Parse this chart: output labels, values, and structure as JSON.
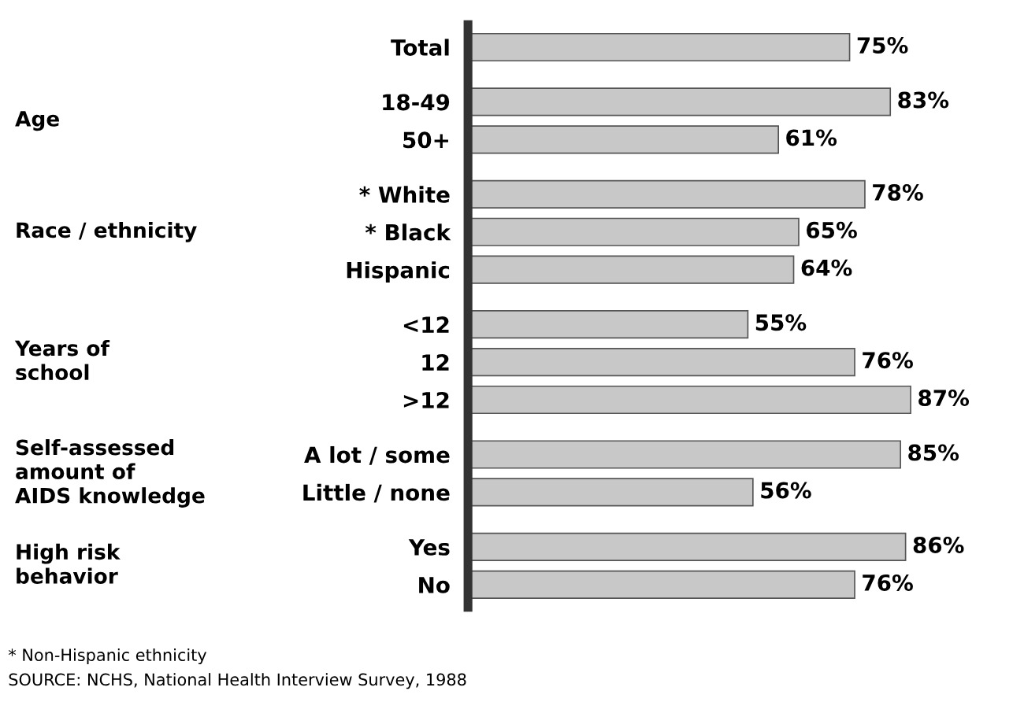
{
  "chart_data": {
    "type": "bar",
    "orientation": "horizontal",
    "categories": [
      "Total",
      "18-49",
      "50+",
      "* White",
      "* Black",
      "Hispanic",
      "<12",
      "12",
      ">12",
      "A lot / some",
      "Little / none",
      "Yes",
      "No"
    ],
    "values": [
      75,
      83,
      61,
      78,
      65,
      64,
      55,
      76,
      87,
      85,
      56,
      86,
      76
    ],
    "color": "#c8c8c8",
    "value_labels": [
      "75%",
      "83%",
      "61%",
      "78%",
      "65%",
      "64%",
      "55%",
      "76%",
      "87%",
      "85%",
      "56%",
      "86%",
      "76%"
    ],
    "grid": false,
    "annotations": [
      "Age",
      "Race / ethnicity",
      "Years of\nschool",
      "Self-assessed\namount of\nAIDS knowledge",
      "High risk\nbehavior",
      "* Non-Hispanic ethnicity",
      "SOURCE: NCHS, National Health Interview Survey, 1988"
    ]
  }
}
